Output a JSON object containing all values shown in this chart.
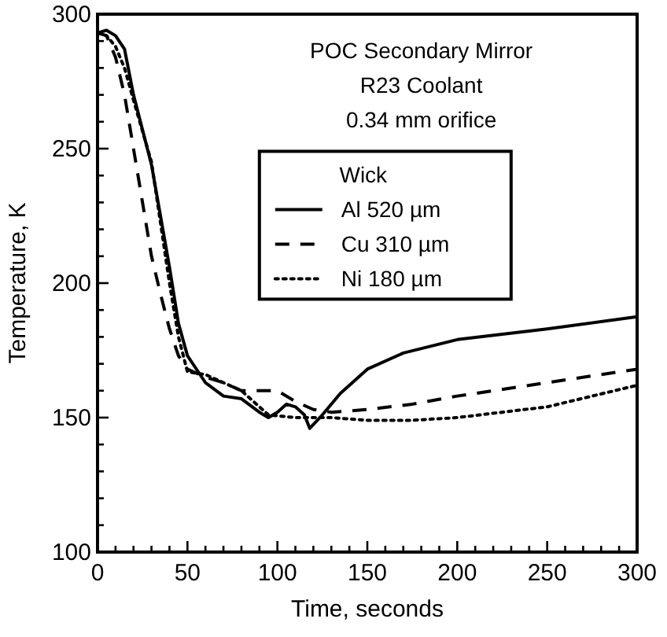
{
  "chart_data": {
    "type": "line",
    "title": "POC Secondary Mirror",
    "annotations": [
      "R23 Coolant",
      "0.34 mm orifice"
    ],
    "xlabel": "Time, seconds",
    "ylabel": "Temperature, K",
    "legend_title": "Wick",
    "legend": "top right",
    "grid": false,
    "xlim": [
      0,
      300
    ],
    "ylim": [
      100,
      300
    ],
    "xticks": [
      0,
      {
        "value": 10,
        "label": null
      },
      {
        "value": 20,
        "label": null
      },
      {
        "value": 30,
        "label": null
      },
      {
        "value": 40,
        "label": null
      },
      50,
      {
        "value": 60,
        "label": null
      },
      {
        "value": 70,
        "label": null
      },
      {
        "value": 80,
        "label": null
      },
      {
        "value": 90,
        "label": null
      },
      100,
      {
        "value": 110,
        "label": null
      },
      {
        "value": 120,
        "label": null
      },
      {
        "value": 130,
        "label": null
      },
      {
        "value": 140,
        "label": null
      },
      150,
      {
        "value": 160,
        "label": null
      },
      {
        "value": 170,
        "label": null
      },
      {
        "value": 180,
        "label": null
      },
      {
        "value": 190,
        "label": null
      },
      200,
      {
        "value": 210,
        "label": null
      },
      {
        "value": 220,
        "label": null
      },
      {
        "value": 230,
        "label": null
      },
      {
        "value": 240,
        "label": null
      },
      250,
      {
        "value": 260,
        "label": null
      },
      {
        "value": 270,
        "label": null
      },
      {
        "value": 280,
        "label": null
      },
      {
        "value": 290,
        "label": null
      },
      300
    ],
    "yticks": [
      100,
      {
        "value": 110,
        "label": null
      },
      {
        "value": 120,
        "label": null
      },
      {
        "value": 130,
        "label": null
      },
      {
        "value": 140,
        "label": null
      },
      150,
      {
        "value": 160,
        "label": null
      },
      {
        "value": 170,
        "label": null
      },
      {
        "value": 180,
        "label": null
      },
      {
        "value": 190,
        "label": null
      },
      200,
      {
        "value": 210,
        "label": null
      },
      {
        "value": 220,
        "label": null
      },
      {
        "value": 230,
        "label": null
      },
      {
        "value": 240,
        "label": null
      },
      250,
      {
        "value": 260,
        "label": null
      },
      {
        "value": 270,
        "label": null
      },
      {
        "value": 280,
        "label": null
      },
      {
        "value": 290,
        "label": null
      },
      300
    ],
    "series": [
      {
        "name": "Al 520 µm",
        "color": "#000000",
        "line_style": "solid",
        "x": [
          0,
          5,
          10,
          15,
          20,
          30,
          40,
          45,
          50,
          60,
          70,
          80,
          90,
          95,
          100,
          105,
          110,
          115,
          118,
          125,
          135,
          150,
          170,
          200,
          250,
          300
        ],
        "values": [
          293,
          294,
          292,
          287,
          270,
          244,
          206,
          185,
          173,
          163,
          158,
          157,
          152,
          150,
          152,
          155,
          154,
          151,
          146,
          151,
          159,
          168,
          174,
          179,
          183,
          187.5
        ]
      },
      {
        "name": "Cu 310 µm",
        "color": "#000000",
        "line_style": "dashed",
        "x": [
          0,
          5,
          10,
          15,
          20,
          25,
          30,
          35,
          40,
          45,
          50,
          60,
          70,
          80,
          100,
          110,
          120,
          130,
          150,
          175,
          200,
          250,
          300
        ],
        "values": [
          293,
          292,
          284,
          270,
          250,
          230,
          210,
          196,
          183,
          173,
          168,
          165,
          163,
          160,
          160,
          156,
          153,
          152,
          153,
          155,
          158,
          163,
          168
        ]
      },
      {
        "name": "Ni 180 µm",
        "color": "#000000",
        "line_style": "dotted",
        "x": [
          0,
          5,
          10,
          15,
          20,
          30,
          40,
          45,
          50,
          60,
          80,
          95,
          110,
          130,
          150,
          175,
          200,
          250,
          300
        ],
        "values": [
          293,
          292,
          288,
          280,
          268,
          245,
          200,
          180,
          167,
          166,
          160,
          151,
          150,
          150,
          149,
          149,
          150,
          154,
          162
        ]
      }
    ]
  }
}
